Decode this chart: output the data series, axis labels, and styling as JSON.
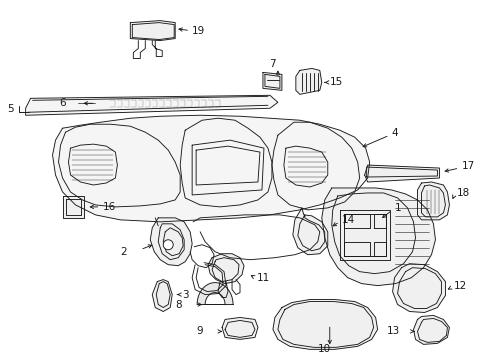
{
  "bg_color": "#ffffff",
  "line_color": "#1a1a1a",
  "figsize": [
    4.89,
    3.6
  ],
  "dpi": 100,
  "lw": 0.65,
  "fontsize": 7.5
}
